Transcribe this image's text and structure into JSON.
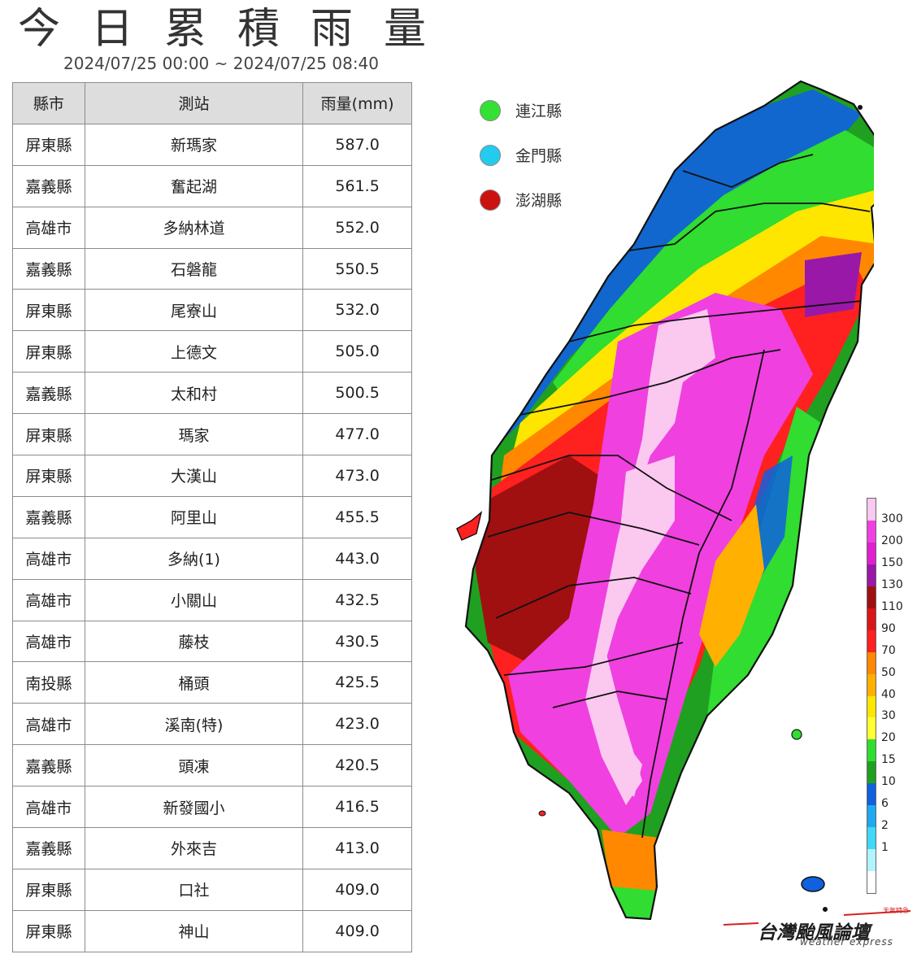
{
  "title": "今日累積雨量",
  "subtitle": "2024/07/25 00:00 ~ 2024/07/25 08:40",
  "table": {
    "headers": [
      "縣市",
      "測站",
      "雨量(mm)"
    ],
    "rows": [
      [
        "屏東縣",
        "新瑪家",
        "587.0"
      ],
      [
        "嘉義縣",
        "奮起湖",
        "561.5"
      ],
      [
        "高雄市",
        "多納林道",
        "552.0"
      ],
      [
        "嘉義縣",
        "石磐龍",
        "550.5"
      ],
      [
        "屏東縣",
        "尾寮山",
        "532.0"
      ],
      [
        "屏東縣",
        "上德文",
        "505.0"
      ],
      [
        "嘉義縣",
        "太和村",
        "500.5"
      ],
      [
        "屏東縣",
        "瑪家",
        "477.0"
      ],
      [
        "屏東縣",
        "大漢山",
        "473.0"
      ],
      [
        "嘉義縣",
        "阿里山",
        "455.5"
      ],
      [
        "高雄市",
        "多納(1)",
        "443.0"
      ],
      [
        "高雄市",
        "小關山",
        "432.5"
      ],
      [
        "高雄市",
        "藤枝",
        "430.5"
      ],
      [
        "南投縣",
        "桶頭",
        "425.5"
      ],
      [
        "高雄市",
        "溪南(特)",
        "423.0"
      ],
      [
        "嘉義縣",
        "頭凍",
        "420.5"
      ],
      [
        "高雄市",
        "新發國小",
        "416.5"
      ],
      [
        "嘉義縣",
        "外來吉",
        "413.0"
      ],
      [
        "屏東縣",
        "口社",
        "409.0"
      ],
      [
        "屏東縣",
        "神山",
        "409.0"
      ]
    ]
  },
  "outlying_islands": [
    {
      "name": "連江縣",
      "color": "#33e033"
    },
    {
      "name": "金門縣",
      "color": "#22ccee"
    },
    {
      "name": "澎湖縣",
      "color": "#cc1111"
    }
  ],
  "colorbar": {
    "labels": [
      "300",
      "200",
      "150",
      "130",
      "110",
      "90",
      "70",
      "50",
      "40",
      "30",
      "20",
      "15",
      "10",
      "6",
      "2",
      "1"
    ],
    "colors": [
      "#fbc8f0",
      "#f040e0",
      "#e020d0",
      "#9a18a8",
      "#a01010",
      "#d81818",
      "#ff2020",
      "#ff8800",
      "#ffb000",
      "#ffe600",
      "#ffff33",
      "#30dd30",
      "#20a020",
      "#1060e0",
      "#20a8f0",
      "#40d8f8",
      "#b0f4ff",
      "#ffffff"
    ]
  },
  "logo": {
    "name": "台灣颱風論壇",
    "english": "weather express",
    "tag": "天氣特急"
  }
}
